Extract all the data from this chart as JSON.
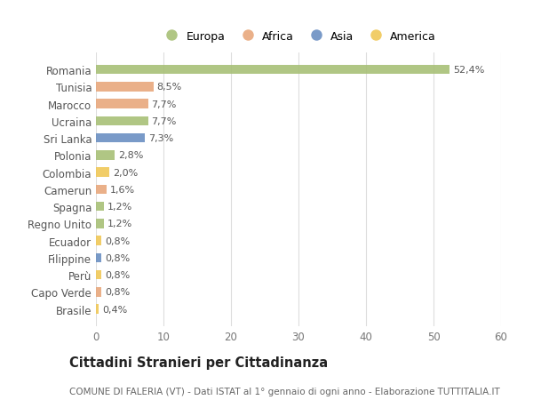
{
  "categories": [
    "Romania",
    "Tunisia",
    "Marocco",
    "Ucraina",
    "Sri Lanka",
    "Polonia",
    "Colombia",
    "Camerun",
    "Spagna",
    "Regno Unito",
    "Ecuador",
    "Filippine",
    "Perù",
    "Capo Verde",
    "Brasile"
  ],
  "values": [
    52.4,
    8.5,
    7.7,
    7.7,
    7.3,
    2.8,
    2.0,
    1.6,
    1.2,
    1.2,
    0.8,
    0.8,
    0.8,
    0.8,
    0.4
  ],
  "labels": [
    "52,4%",
    "8,5%",
    "7,7%",
    "7,7%",
    "7,3%",
    "2,8%",
    "2,0%",
    "1,6%",
    "1,2%",
    "1,2%",
    "0,8%",
    "0,8%",
    "0,8%",
    "0,8%",
    "0,4%"
  ],
  "continents": [
    "Europa",
    "Africa",
    "Africa",
    "Europa",
    "Asia",
    "Europa",
    "America",
    "Africa",
    "Europa",
    "Europa",
    "America",
    "Asia",
    "America",
    "Africa",
    "America"
  ],
  "continent_colors": {
    "Europa": "#a8c077",
    "Africa": "#e8a87c",
    "Asia": "#6b8fc2",
    "America": "#f0c857"
  },
  "legend_order": [
    "Europa",
    "Africa",
    "Asia",
    "America"
  ],
  "title": "Cittadini Stranieri per Cittadinanza",
  "subtitle": "COMUNE DI FALERIA (VT) - Dati ISTAT al 1° gennaio di ogni anno - Elaborazione TUTTITALIA.IT",
  "xlim": [
    0,
    60
  ],
  "xticks": [
    0,
    10,
    20,
    30,
    40,
    50,
    60
  ],
  "background_color": "#ffffff",
  "bar_height": 0.55,
  "grid_color": "#dddddd",
  "label_fontsize": 8.0,
  "tick_fontsize": 8.5,
  "title_fontsize": 10.5,
  "subtitle_fontsize": 7.5
}
